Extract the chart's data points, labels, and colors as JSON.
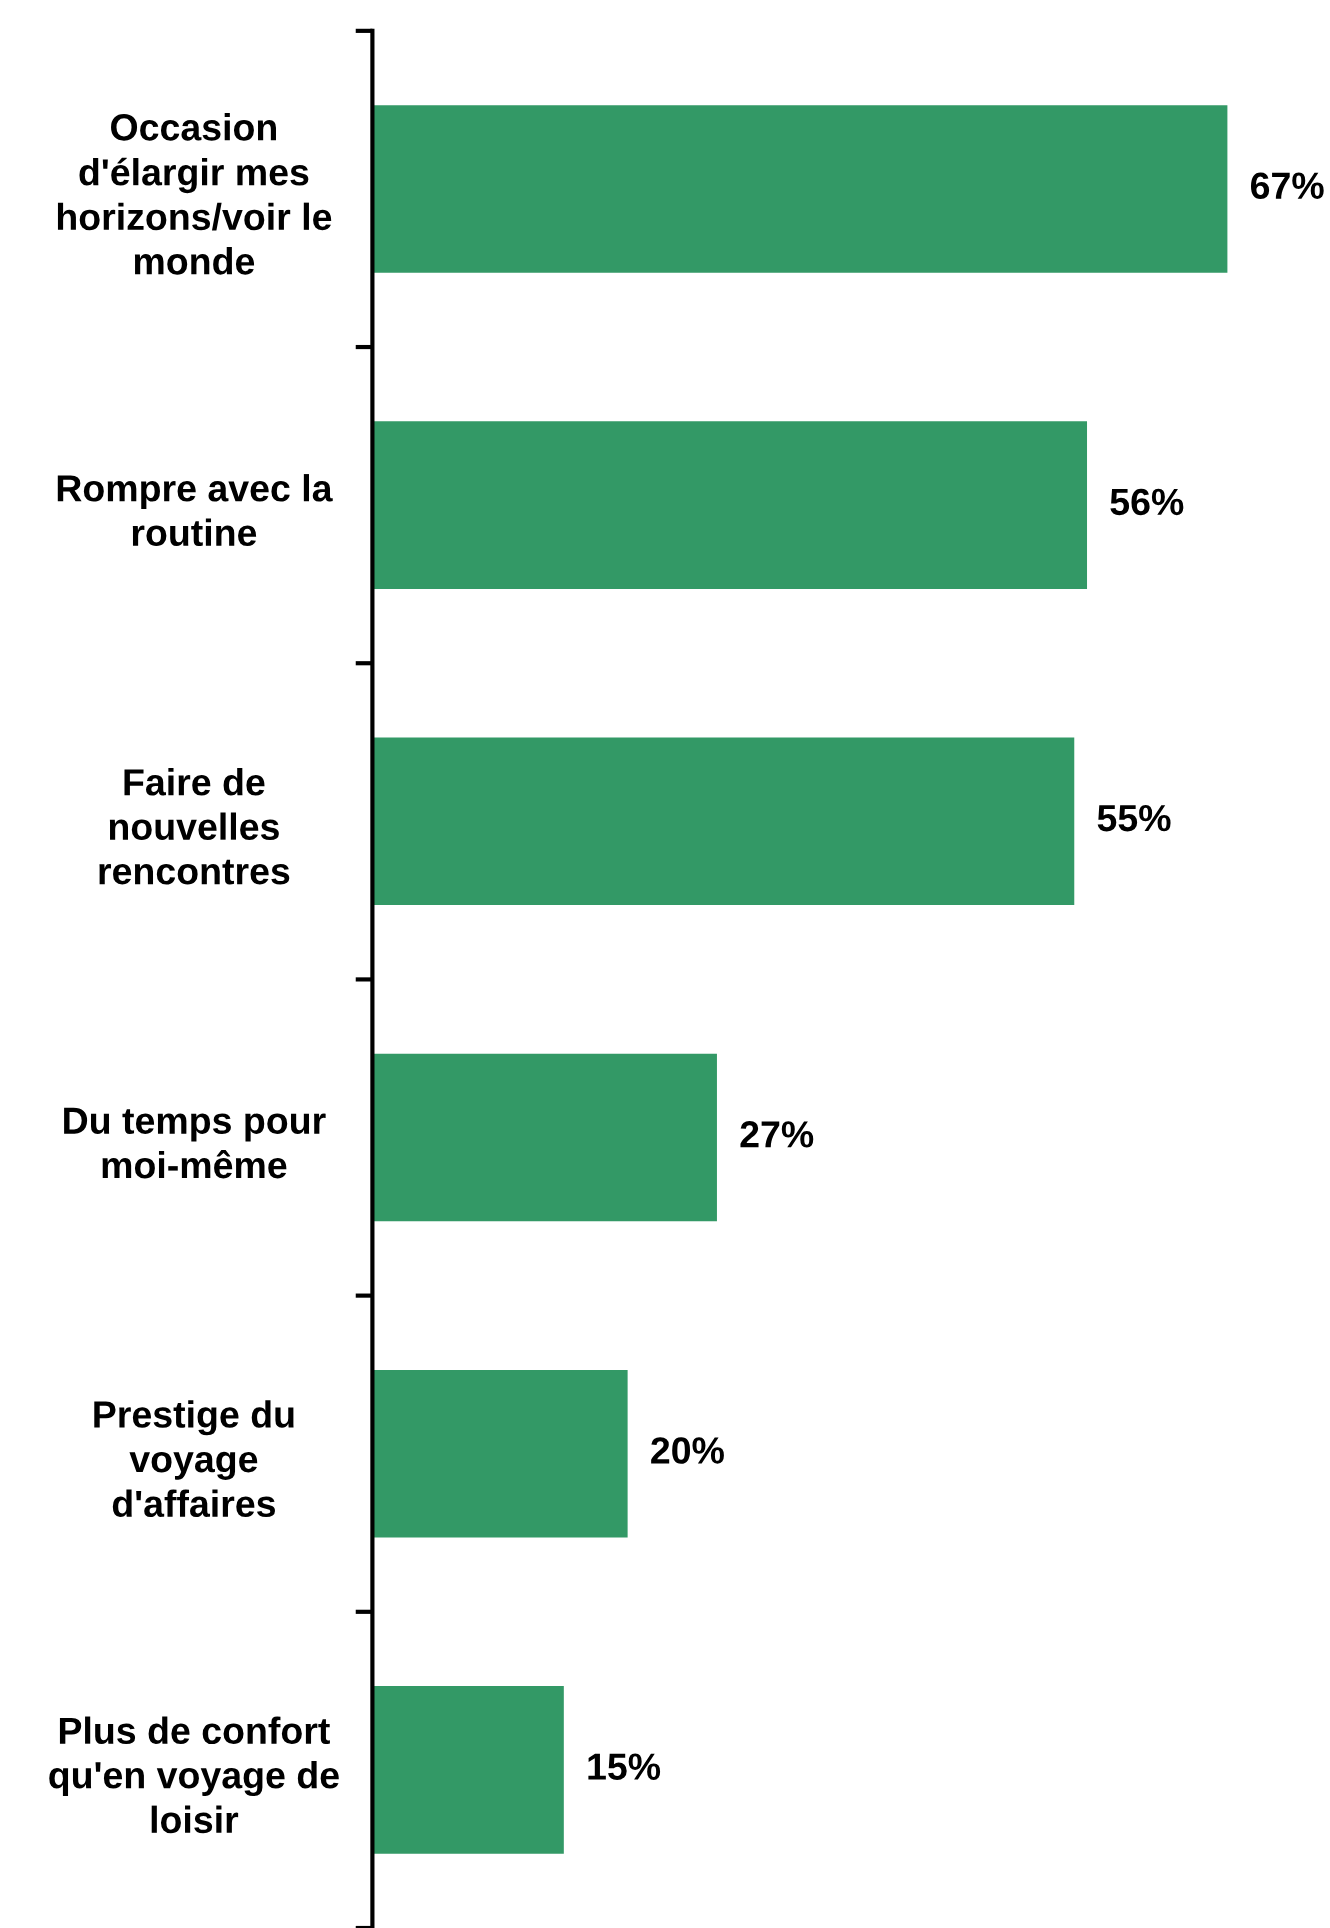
{
  "chart_data": {
    "type": "bar",
    "orientation": "horizontal",
    "categories": [
      "Occasion\nd'élargir mes\nhorizons/voir le\nmonde",
      "Rompre avec la\nroutine",
      "Faire de\nnouvelles\nrencontres",
      "Du temps pour\nmoi-même",
      "Prestige du\nvoyage\nd'affaires",
      "Plus de confort\nqu'en voyage de\nloisir"
    ],
    "values": [
      67,
      56,
      55,
      27,
      20,
      15
    ],
    "value_labels": [
      "67%",
      "56%",
      "55%",
      "27%",
      "20%",
      "15%"
    ],
    "color": "#339966",
    "grid": false,
    "legend": false,
    "tick_labels": "y"
  }
}
